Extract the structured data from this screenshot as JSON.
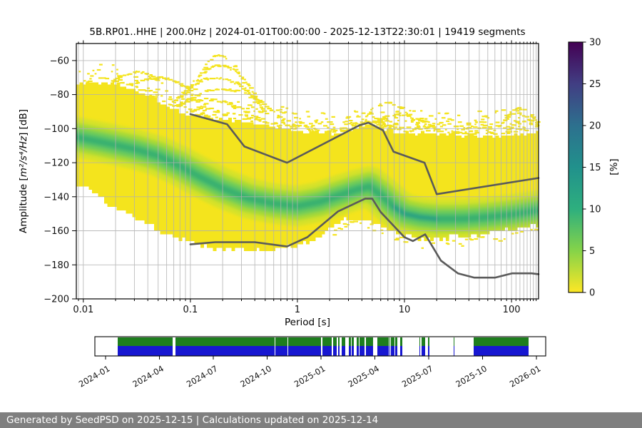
{
  "footer": {
    "text": "Generated by SeedPSD on 2025-12-15 | Calculations updated on 2025-12-14",
    "bg": "#7f7f7f"
  },
  "chart_data": {
    "type": "heatmap",
    "title": "5B.RP01..HHE | 200.0Hz | 2024-01-01T00:00:00 - 2025-12-13T22:30:01 | 19419 segments",
    "title_parts": {
      "station_id": "5B.RP01..HHE",
      "sampling_rate": "200.0Hz",
      "time_range": "2024-01-01T00:00:00 - 2025-12-13T22:30:01",
      "segments": "19419 segments"
    },
    "xlabel": "Period [s]",
    "ylabel": {
      "prefix": "Amplitude [",
      "units": "m²/s⁴/Hz",
      "suffix": "] [dB]"
    },
    "xlim": [
      0.0086,
      179
    ],
    "ylim": [
      -200,
      -50
    ],
    "xscale": "log",
    "xticks": [
      0.01,
      0.1,
      1,
      10,
      100
    ],
    "xtick_labels": [
      "0.01",
      "0.1",
      "1",
      "10",
      "100"
    ],
    "yticks": [
      -200,
      -180,
      -160,
      -140,
      -120,
      -100,
      -80,
      -60
    ],
    "grid_color": "#b0b0b0",
    "frame_color": "#000000",
    "colorbar": {
      "label": "[%]",
      "min": 0,
      "max": 30,
      "ticks": [
        0,
        5,
        10,
        15,
        20,
        25,
        30
      ],
      "colormap": "viridis_r",
      "stops": [
        [
          0,
          "#fde725"
        ],
        [
          5,
          "#85d349"
        ],
        [
          10,
          "#2eaf7e"
        ],
        [
          15,
          "#21918c"
        ],
        [
          20,
          "#2d708e"
        ],
        [
          25,
          "#413e83"
        ],
        [
          30,
          "#440154"
        ]
      ]
    },
    "noise_models": {
      "color": "#5a5a5a",
      "high_noise_model": [
        [
          0.1,
          -91.5
        ],
        [
          0.22,
          -97.4
        ],
        [
          0.32,
          -110.5
        ],
        [
          0.8,
          -120.0
        ],
        [
          3.8,
          -98.0
        ],
        [
          4.6,
          -96.5
        ],
        [
          6.3,
          -101.0
        ],
        [
          7.9,
          -113.5
        ],
        [
          15.4,
          -120.0
        ],
        [
          20.0,
          -138.5
        ],
        [
          179.0,
          -129.0
        ]
      ],
      "low_noise_model": [
        [
          0.1,
          -168.0
        ],
        [
          0.17,
          -166.7
        ],
        [
          0.4,
          -166.7
        ],
        [
          0.8,
          -169.2
        ],
        [
          1.24,
          -163.7
        ],
        [
          2.4,
          -148.6
        ],
        [
          4.3,
          -141.1
        ],
        [
          5.0,
          -141.1
        ],
        [
          6.0,
          -149.0
        ],
        [
          10.0,
          -163.8
        ],
        [
          12.0,
          -166.0
        ],
        [
          15.6,
          -162.1
        ],
        [
          21.9,
          -177.5
        ],
        [
          31.6,
          -185.0
        ],
        [
          45.0,
          -187.5
        ],
        [
          70.0,
          -187.5
        ],
        [
          101.0,
          -185.0
        ],
        [
          154.0,
          -185.0
        ],
        [
          179.0,
          -185.5
        ]
      ]
    },
    "ppsd_cloud": {
      "seed": 1337,
      "colors": {
        "cloud": "#f4e41d",
        "band_outer": "#d4e22a",
        "band_mid2": "#a2d939",
        "band_mid": "#6bcc5a",
        "band_inner": "#44bd6f",
        "band_core": "#2fae74",
        "band_teal": "#1f9e89"
      },
      "top_boundary": [
        [
          0.0086,
          -74
        ],
        [
          0.016,
          -72.5
        ],
        [
          0.022,
          -74
        ],
        [
          0.03,
          -77
        ],
        [
          0.045,
          -82
        ],
        [
          0.06,
          -86
        ],
        [
          0.08,
          -90
        ],
        [
          0.1,
          -92
        ],
        [
          0.15,
          -94
        ],
        [
          0.25,
          -95
        ],
        [
          0.4,
          -97
        ],
        [
          0.7,
          -100
        ],
        [
          1.2,
          -102
        ],
        [
          2.5,
          -103
        ],
        [
          4.0,
          -99
        ],
        [
          5.0,
          -97.5
        ],
        [
          6.5,
          -100
        ],
        [
          8.0,
          -102
        ],
        [
          12,
          -103
        ],
        [
          20,
          -103
        ],
        [
          40,
          -104
        ],
        [
          80,
          -104
        ],
        [
          120,
          -103
        ],
        [
          179,
          -102
        ]
      ],
      "bottom_boundary": [
        [
          0.0086,
          -133
        ],
        [
          0.012,
          -136
        ],
        [
          0.016,
          -143
        ],
        [
          0.022,
          -148
        ],
        [
          0.03,
          -152
        ],
        [
          0.045,
          -158
        ],
        [
          0.07,
          -163
        ],
        [
          0.1,
          -167
        ],
        [
          0.15,
          -170
        ],
        [
          0.3,
          -171
        ],
        [
          0.6,
          -171
        ],
        [
          1.0,
          -169
        ],
        [
          1.5,
          -164
        ],
        [
          2.2,
          -157
        ],
        [
          3.0,
          -153
        ],
        [
          4.5,
          -153
        ],
        [
          6.0,
          -157
        ],
        [
          9.0,
          -162
        ],
        [
          14,
          -165
        ],
        [
          22,
          -165
        ],
        [
          40,
          -163
        ],
        [
          70,
          -161
        ],
        [
          110,
          -159
        ],
        [
          179,
          -156
        ]
      ],
      "mode": [
        [
          0.0086,
          -105
        ],
        [
          0.015,
          -108
        ],
        [
          0.03,
          -112
        ],
        [
          0.05,
          -116
        ],
        [
          0.08,
          -122
        ],
        [
          0.12,
          -128
        ],
        [
          0.2,
          -135
        ],
        [
          0.35,
          -141
        ],
        [
          0.6,
          -144
        ],
        [
          1.0,
          -145.5
        ],
        [
          1.6,
          -143
        ],
        [
          2.5,
          -139
        ],
        [
          3.5,
          -136
        ],
        [
          4.7,
          -134
        ],
        [
          6.0,
          -139
        ],
        [
          8.0,
          -146
        ],
        [
          10,
          -150
        ],
        [
          14,
          -152
        ],
        [
          20,
          -153
        ],
        [
          35,
          -153
        ],
        [
          60,
          -152
        ],
        [
          100,
          -150.5
        ],
        [
          179,
          -148
        ]
      ]
    },
    "speckles": {
      "seed": 20240101,
      "arcs": [
        [
          -0.72,
          -57,
          0.3,
          30
        ],
        [
          -0.72,
          -63,
          0.4,
          26
        ],
        [
          -0.76,
          -70,
          0.48,
          22
        ],
        [
          -0.7,
          -77,
          0.56,
          18
        ],
        [
          -0.86,
          -83,
          0.5,
          12
        ],
        [
          -1.3,
          -70,
          0.3,
          8
        ],
        [
          -1.5,
          -67,
          0.25,
          7
        ],
        [
          0.85,
          -85,
          0.3,
          16
        ],
        [
          0.95,
          -92,
          0.38,
          11
        ],
        [
          0.7,
          -96,
          0.3,
          8
        ],
        [
          2.08,
          -88,
          0.2,
          14
        ],
        [
          2.16,
          -95,
          0.24,
          9
        ]
      ]
    }
  },
  "availability": {
    "labels": [
      "2024-01",
      "2024-04",
      "2024-07",
      "2024-10",
      "2025-01",
      "2025-04",
      "2025-07",
      "2025-10",
      "2026-01"
    ],
    "colors": {
      "green": "#1e7e1e",
      "blue": "#1717d1"
    },
    "segments": [
      [
        0.0506,
        0.17,
        0.92
      ],
      [
        0.17,
        0.52,
        0.88
      ],
      [
        0.52,
        0.625,
        0.55
      ],
      [
        0.625,
        0.68,
        0.75
      ],
      [
        0.68,
        0.835,
        0.22
      ],
      [
        0.835,
        0.955,
        0.985
      ]
    ]
  }
}
